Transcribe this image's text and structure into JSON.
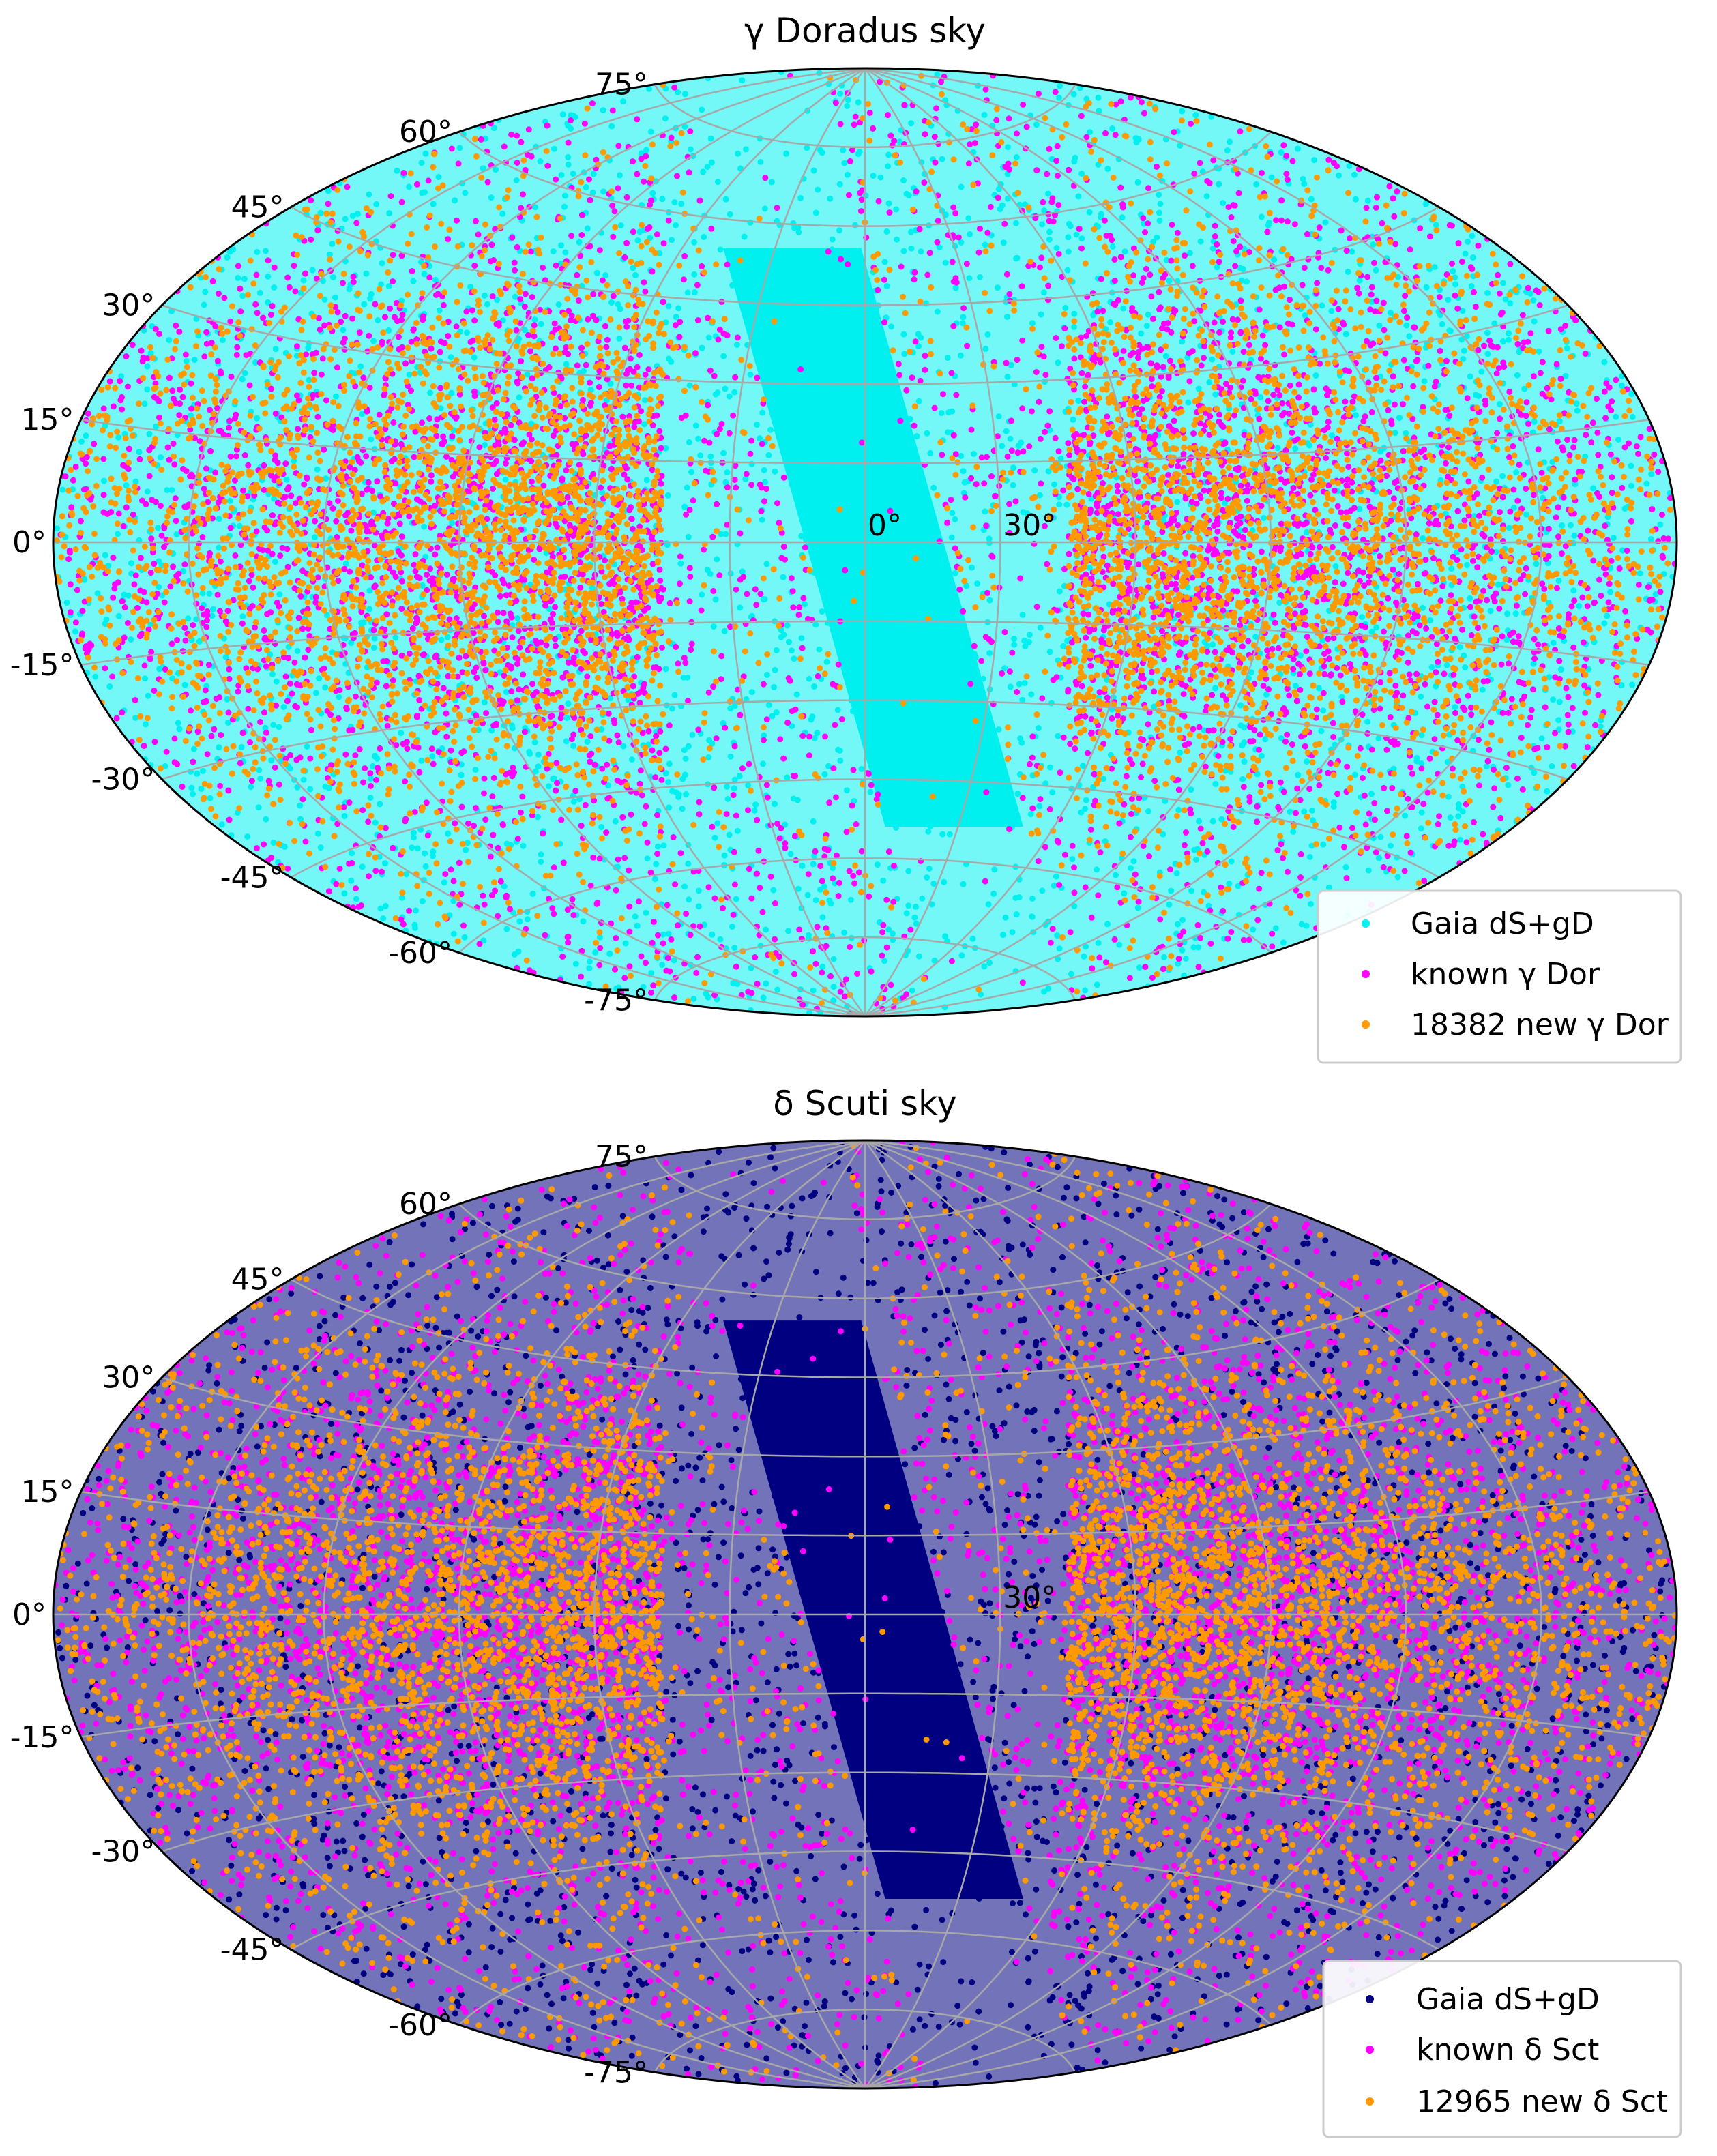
{
  "chart_data": [
    {
      "type": "scatter",
      "projection": "aitoff",
      "title": "γ Doradus sky",
      "lat_ticks": [
        "75°",
        "60°",
        "45°",
        "30°",
        "15°",
        "0°",
        "-15°",
        "-30°",
        "-45°",
        "-60°",
        "-75°"
      ],
      "lon_labels": [
        "0°",
        "30°"
      ],
      "grid": true,
      "legend_position": "lower-right",
      "series": [
        {
          "name": "Gaia dS+gD",
          "label": "Gaia dS+gD",
          "color": "#00f0f0",
          "approx_count": 100000
        },
        {
          "name": "known γ Dor",
          "label": "known γ Dor",
          "color": "#ff00ff"
        },
        {
          "name": "18382 new γ Dor",
          "label": "18382 new γ Dor",
          "color": "#ff9900",
          "count": 18382
        }
      ]
    },
    {
      "type": "scatter",
      "projection": "aitoff",
      "title": "δ Scuti sky",
      "lat_ticks": [
        "75°",
        "60°",
        "45°",
        "30°",
        "15°",
        "0°",
        "-15°",
        "-30°",
        "-45°",
        "-60°",
        "-75°"
      ],
      "lon_labels": [
        "30°"
      ],
      "grid": true,
      "legend_position": "lower-right",
      "series": [
        {
          "name": "Gaia dS+gD",
          "label": "Gaia dS+gD",
          "color": "#000080",
          "approx_count": 100000
        },
        {
          "name": "known δ Sct",
          "label": "known δ Sct",
          "color": "#ff00ff"
        },
        {
          "name": "12965 new δ Sct",
          "label": "12965 new δ Sct",
          "color": "#ff9900",
          "count": 12965
        }
      ]
    }
  ]
}
